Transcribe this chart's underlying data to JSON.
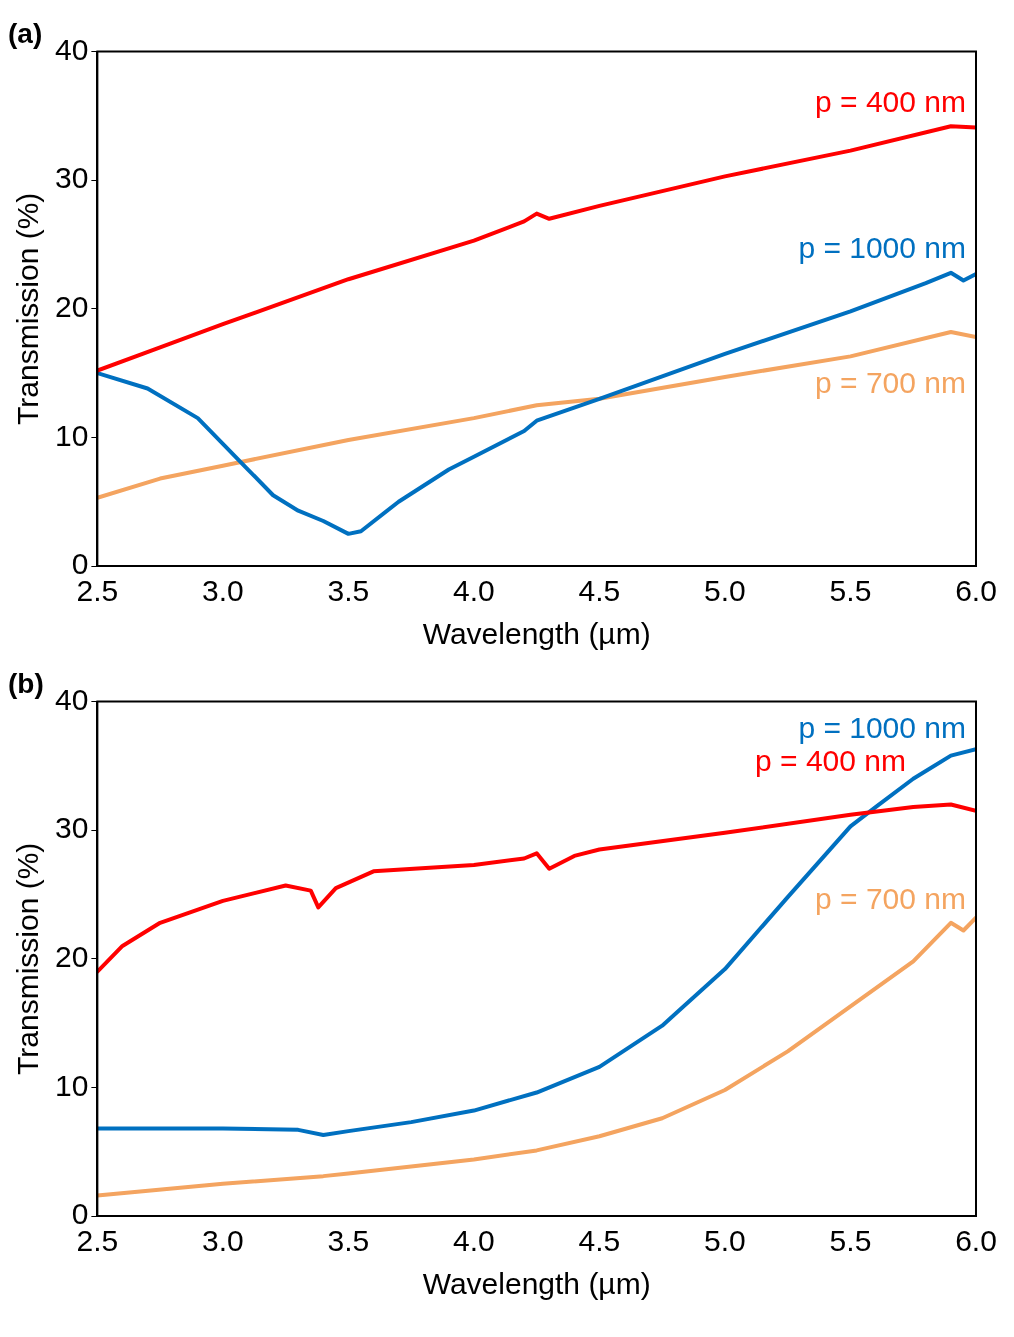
{
  "chart_data": [
    {
      "type": "line",
      "title": "(a)",
      "xlabel": "Wavelength (µm)",
      "ylabel": "Transmission (%)",
      "xlim": [
        2.5,
        6
      ],
      "ylim": [
        0,
        40
      ],
      "xticks": [
        2.5,
        {
          "value": 3,
          "label": "3.0"
        },
        3.5,
        {
          "value": 4,
          "label": "4.0"
        },
        4.5,
        {
          "value": 5,
          "label": "5.0"
        },
        5.5,
        {
          "value": 6,
          "label": "6.0"
        }
      ],
      "yticks": [
        0,
        10,
        20,
        30,
        40
      ],
      "grid": false,
      "legend": false,
      "marker": "none",
      "line_style": "solid",
      "series": [
        {
          "name": "p = 400 nm",
          "color": "#ff0000",
          "x": [
            2.5,
            2.75,
            3.0,
            3.5,
            4.0,
            4.2,
            4.25,
            4.3,
            4.5,
            5.0,
            5.5,
            5.9,
            6.0
          ],
          "values": [
            15.2,
            17,
            18.8,
            22.3,
            25.3,
            26.8,
            27.4,
            27,
            28,
            30.3,
            32.3,
            34.2,
            34.1
          ]
        },
        {
          "name": "p = 1000 nm",
          "color": "#0070c0",
          "x": [
            2.5,
            2.7,
            2.9,
            3.0,
            3.1,
            3.2,
            3.3,
            3.4,
            3.5,
            3.55,
            3.7,
            3.9,
            4.0,
            4.2,
            4.25,
            4.5,
            5.0,
            5.5,
            5.8,
            5.9,
            5.95,
            6.0
          ],
          "values": [
            15,
            13.8,
            11.5,
            9.5,
            7.5,
            5.5,
            4.3,
            3.5,
            2.5,
            2.7,
            5,
            7.5,
            8.5,
            10.5,
            11.3,
            13,
            16.5,
            19.8,
            22,
            22.8,
            22.2,
            22.7
          ]
        },
        {
          "name": "p = 700 nm",
          "color": "#f4a460",
          "x": [
            2.5,
            2.75,
            3.0,
            3.5,
            4.0,
            4.25,
            4.5,
            5.0,
            5.5,
            5.9,
            6.0
          ],
          "values": [
            5.3,
            6.8,
            7.8,
            9.8,
            11.5,
            12.5,
            13,
            14.7,
            16.3,
            18.2,
            17.8
          ]
        }
      ]
    },
    {
      "type": "line",
      "title": "(b)",
      "xlabel": "Wavelength (µm)",
      "ylabel": "Transmission (%)",
      "xlim": [
        2.5,
        6
      ],
      "ylim": [
        0,
        40
      ],
      "xticks": [
        2.5,
        {
          "value": 3,
          "label": "3.0"
        },
        3.5,
        {
          "value": 4,
          "label": "4.0"
        },
        4.5,
        {
          "value": 5,
          "label": "5.0"
        },
        5.5,
        {
          "value": 6,
          "label": "6.0"
        }
      ],
      "yticks": [
        0,
        10,
        20,
        30,
        40
      ],
      "grid": false,
      "legend": false,
      "marker": "none",
      "line_style": "solid",
      "series": [
        {
          "name": "p = 400 nm",
          "color": "#ff0000",
          "x": [
            2.5,
            2.6,
            2.75,
            3.0,
            3.25,
            3.35,
            3.38,
            3.45,
            3.6,
            4.0,
            4.2,
            4.25,
            4.3,
            4.4,
            4.5,
            5.0,
            5.5,
            5.75,
            5.9,
            6.0
          ],
          "values": [
            19,
            21,
            22.8,
            24.5,
            25.7,
            25.3,
            24,
            25.5,
            26.8,
            27.3,
            27.8,
            28.2,
            27,
            28,
            28.5,
            29.8,
            31.2,
            31.8,
            32,
            31.5
          ]
        },
        {
          "name": "p = 1000 nm",
          "color": "#0070c0",
          "x": [
            2.5,
            3.0,
            3.3,
            3.4,
            3.5,
            3.75,
            4.0,
            4.25,
            4.5,
            4.75,
            5.0,
            5.25,
            5.5,
            5.6,
            5.75,
            5.9,
            6.0
          ],
          "values": [
            6.8,
            6.8,
            6.7,
            6.3,
            6.6,
            7.3,
            8.2,
            9.6,
            11.6,
            14.8,
            19.2,
            24.8,
            30.3,
            31.8,
            34,
            35.8,
            36.3
          ]
        },
        {
          "name": "p = 700 nm",
          "color": "#f4a460",
          "x": [
            2.5,
            3.0,
            3.4,
            3.5,
            4.0,
            4.25,
            4.5,
            4.75,
            5.0,
            5.25,
            5.5,
            5.75,
            5.9,
            5.95,
            6.0
          ],
          "values": [
            1.6,
            2.5,
            3.1,
            3.3,
            4.4,
            5.1,
            6.2,
            7.6,
            9.8,
            12.8,
            16.3,
            19.8,
            22.8,
            22.2,
            23.2
          ]
        }
      ]
    }
  ]
}
